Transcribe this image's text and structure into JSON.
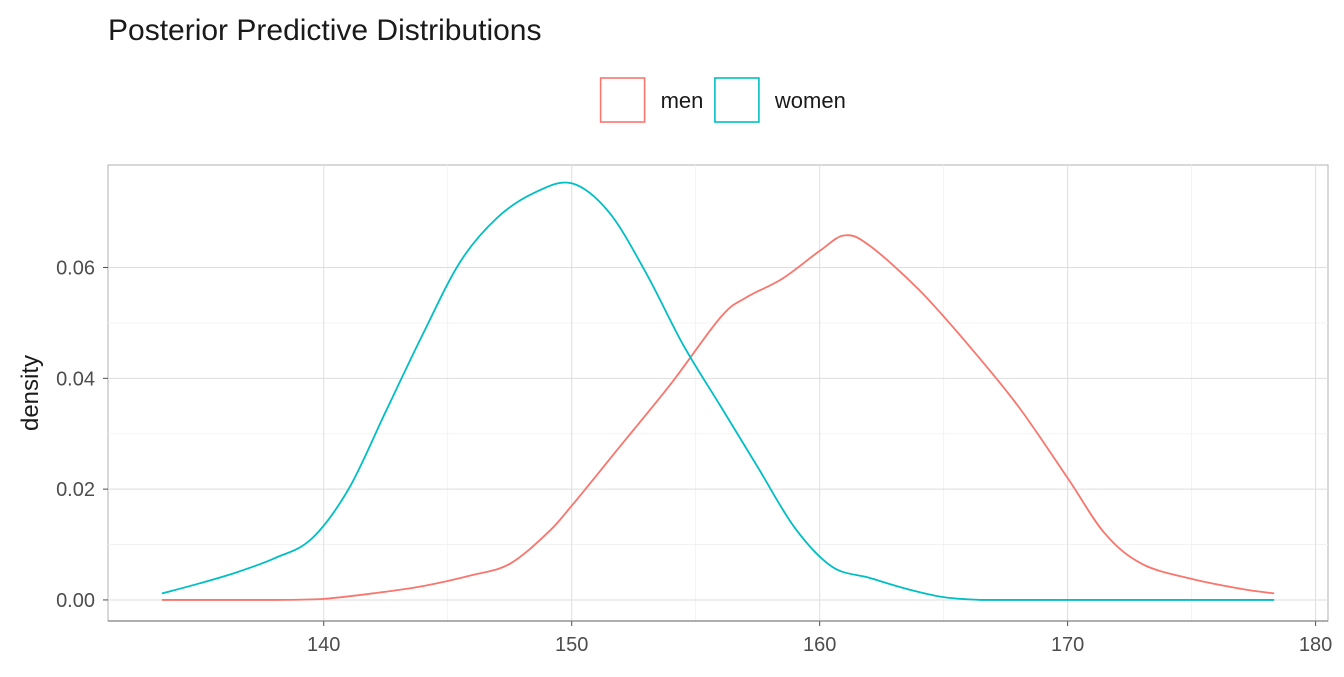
{
  "chart_data": {
    "type": "line",
    "title": "Posterior Predictive Distributions",
    "xlabel": "",
    "ylabel": "density",
    "xlim": [
      131.3,
      180.5
    ],
    "ylim": [
      -0.0038,
      0.0785
    ],
    "x_ticks": [
      140,
      150,
      160,
      170,
      180
    ],
    "x_tick_labels": [
      "140",
      "150",
      "160",
      "170",
      "180"
    ],
    "y_ticks": [
      0.0,
      0.02,
      0.04,
      0.06
    ],
    "y_tick_labels": [
      "0.00",
      "0.02",
      "0.04",
      "0.06"
    ],
    "grid": true,
    "legend_position": "top",
    "series": [
      {
        "name": "men",
        "color": "#F8766D",
        "x": [
          133.5,
          136,
          138,
          140,
          142,
          144,
          146,
          147.5,
          149,
          150,
          152,
          154,
          156,
          157,
          158.5,
          160,
          161,
          162,
          164,
          166,
          168,
          170,
          171.5,
          173,
          175,
          177,
          178.3
        ],
        "y": [
          0.0,
          0.0,
          0.0,
          0.0002,
          0.0012,
          0.0025,
          0.0045,
          0.0065,
          0.012,
          0.017,
          0.028,
          0.039,
          0.051,
          0.0545,
          0.058,
          0.063,
          0.0658,
          0.064,
          0.056,
          0.046,
          0.035,
          0.022,
          0.012,
          0.0065,
          0.0038,
          0.002,
          0.0012
        ]
      },
      {
        "name": "women",
        "color": "#00BFC4",
        "x": [
          133.5,
          135,
          136.5,
          138,
          139.5,
          141,
          142.5,
          144,
          145.5,
          147,
          148.5,
          150,
          151.5,
          153,
          154.5,
          156,
          157.5,
          159,
          160.5,
          162,
          163.5,
          165,
          166.5,
          168,
          170,
          172,
          175,
          178.3
        ],
        "y": [
          0.0012,
          0.003,
          0.005,
          0.0075,
          0.011,
          0.02,
          0.034,
          0.048,
          0.061,
          0.069,
          0.0735,
          0.0752,
          0.07,
          0.059,
          0.046,
          0.035,
          0.024,
          0.013,
          0.006,
          0.004,
          0.002,
          0.0005,
          0.0,
          0.0,
          0.0,
          0.0,
          0.0,
          0.0
        ]
      }
    ]
  }
}
